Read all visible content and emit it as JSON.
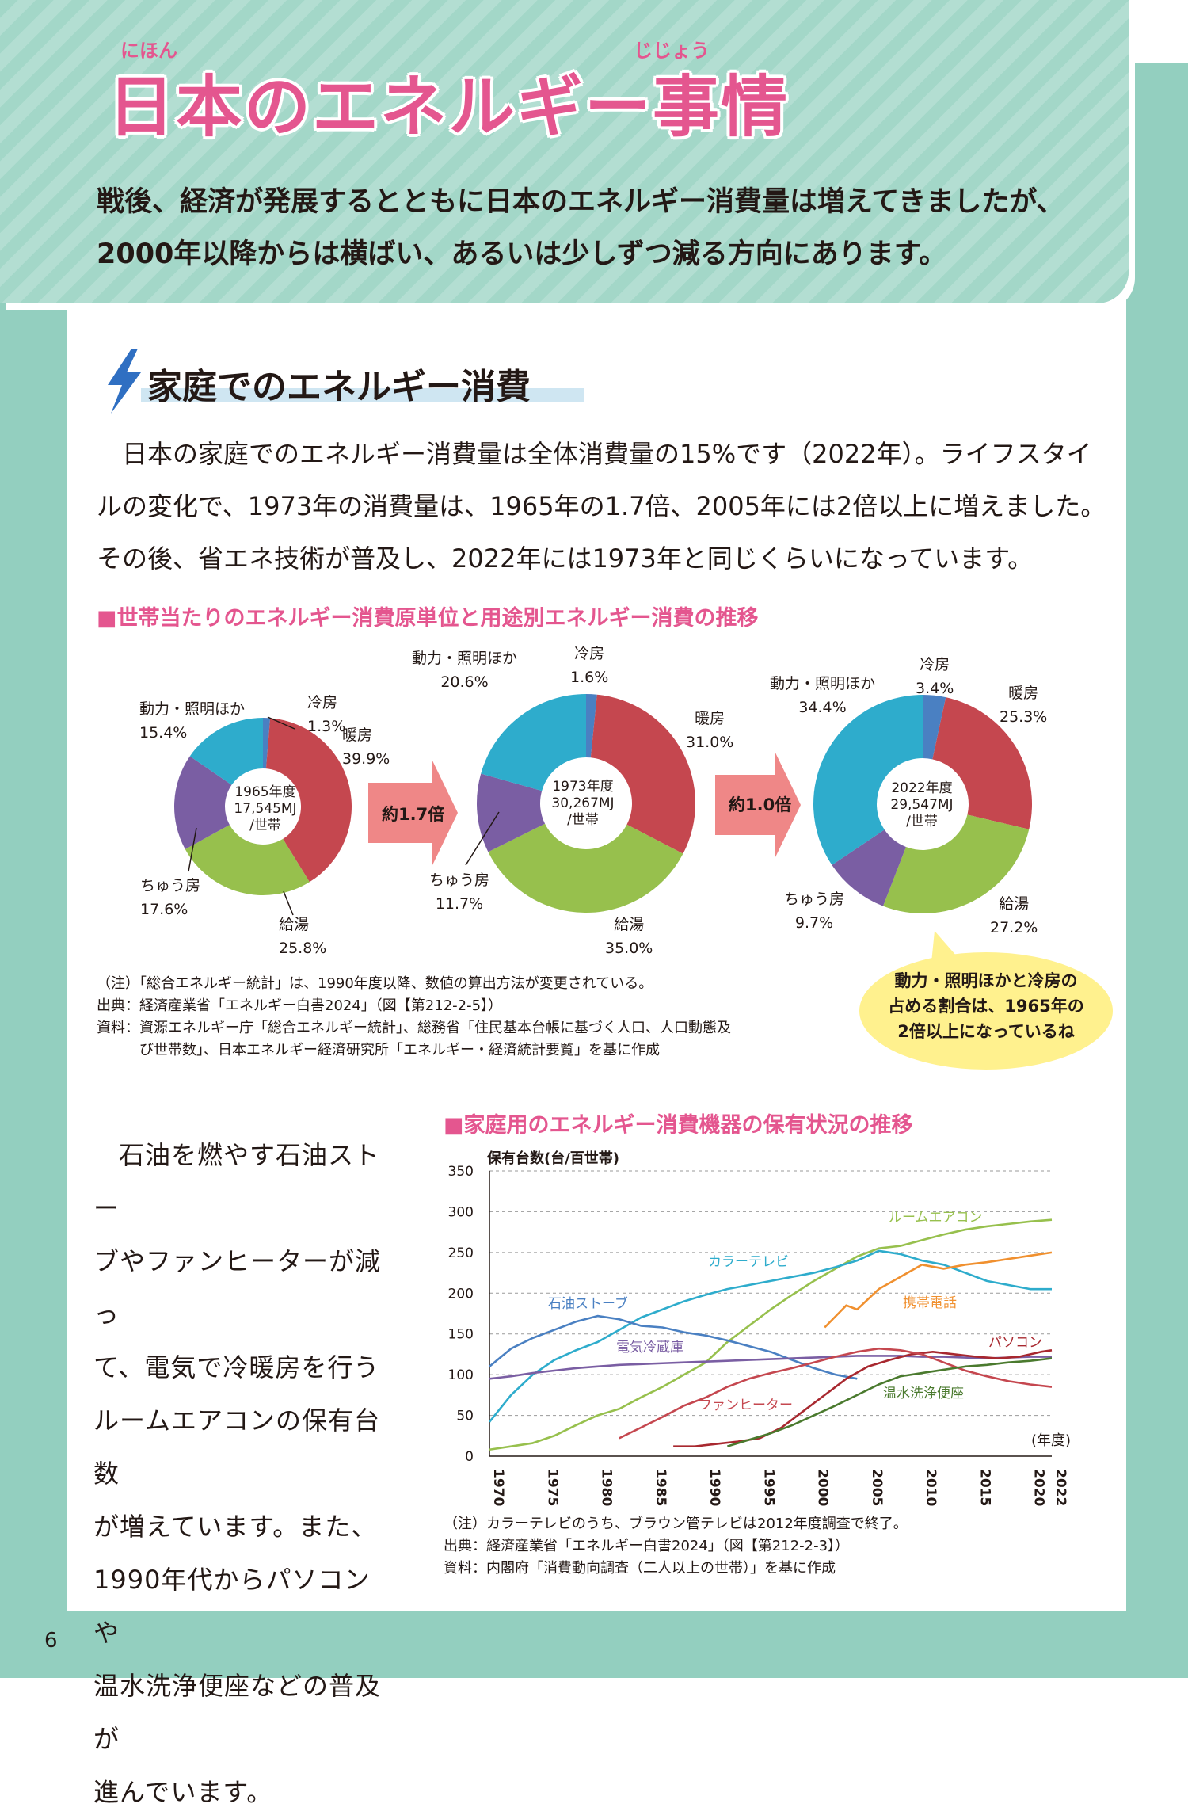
{
  "header": {
    "title": "日本のエネルギー事情",
    "title_ruby": [
      "にほん",
      "じじょう"
    ],
    "lead": [
      "戦後、経済が発展するとともに日本のエネルギー消費量は増えてきましたが、",
      "2000年以降からは横ばい、あるいは少しずつ減る方向にあります。"
    ]
  },
  "section": {
    "title": "家庭でのエネルギー消費",
    "body": [
      "日本の家庭でのエネルギー消費量は全体消費量の15%です（2022年）。ライフスタイ",
      "ルの変化で、1973年の消費量は、1965年の1.7倍、2005年には2倍以上に増えました。",
      "その後、省エネ技術が普及し、2022年には1973年と同じくらいになっています。"
    ]
  },
  "colors": {
    "cooling": "#4a80c2",
    "heating": "#c5474f",
    "hot_water": "#97c04d",
    "kitchen": "#7a5ea3",
    "power_lighting": "#2eaccc",
    "accent_pink": "#e4568f",
    "frame": "#93cfbf",
    "arrow": "#ef8787",
    "bubble": "#fff18e"
  },
  "chart1": {
    "heading": "■世帯当たりのエネルギー消費原単位と用途別エネルギー消費の推移",
    "arrow1": "約1.7倍",
    "arrow2": "約1.0倍",
    "notes": [
      "（注）「総合エネルギー統計」は、1990年度以降、数値の算出方法が変更されている。",
      "出典：経済産業省「エネルギー白書2024」（図【第212-2-5】）",
      "資料：資源エネルギー庁「総合エネルギー統計」、総務省「住民基本台帳に基づく人口、人口動態及",
      "　　　び世帯数」、日本エネルギー経済研究所「エネルギー・経済統計要覧」を基に作成"
    ],
    "bubble": [
      "動力・照明ほかと冷房の",
      "占める割合は、1965年の",
      "2倍以上になっているね"
    ],
    "d1": {
      "center": [
        "1965年度",
        "17,545MJ",
        "/世帯"
      ],
      "labels": {
        "power": [
          "動力・照明ほか",
          "15.4%"
        ],
        "cooling": [
          "冷房",
          "1.3%"
        ],
        "heating": [
          "暖房",
          "39.9%"
        ],
        "hotwater": [
          "給湯",
          "25.8%"
        ],
        "kitchen": [
          "ちゅう房",
          "17.6%"
        ]
      }
    },
    "d2": {
      "center": [
        "1973年度",
        "30,267MJ",
        "/世帯"
      ],
      "labels": {
        "power": [
          "動力・照明ほか",
          "20.6%"
        ],
        "cooling": [
          "冷房",
          "1.6%"
        ],
        "heating": [
          "暖房",
          "31.0%"
        ],
        "hotwater": [
          "給湯",
          "35.0%"
        ],
        "kitchen": [
          "ちゅう房",
          "11.7%"
        ]
      }
    },
    "d3": {
      "center": [
        "2022年度",
        "29,547MJ",
        "/世帯"
      ],
      "labels": {
        "power": [
          "動力・照明ほか",
          "34.4%"
        ],
        "cooling": [
          "冷房",
          "3.4%"
        ],
        "heating": [
          "暖房",
          "25.3%"
        ],
        "hotwater": [
          "給湯",
          "27.2%"
        ],
        "kitchen": [
          "ちゅう房",
          "9.7%"
        ]
      }
    }
  },
  "chart2": {
    "heading": "■家庭用のエネルギー消費機器の保有状況の推移",
    "ylabel": "保有台数(台/百世帯)",
    "xunit": "(年度)",
    "notes": [
      "（注）カラーテレビのうち、ブラウン管テレビは2012年度調査で終了。",
      "出典：経済産業省「エネルギー白書2024」（図【第212-2-3】）",
      "資料：内閣府「消費動向調査（二人以上の世帯）」を基に作成"
    ]
  },
  "side_text": [
    "石油を燃やす石油ストー",
    "ブやファンヒーターが減っ",
    "て、電気で冷暖房を行う",
    "ルームエアコンの保有台数",
    "が増えています。また、",
    "1990年代からパソコンや",
    "温水洗浄便座などの普及が",
    "進んでいます。"
  ],
  "page_number": "6",
  "chart_data": [
    {
      "type": "pie",
      "subtype": "donut",
      "title": "1965年度",
      "center_text": "17,545MJ/世帯",
      "categories": [
        "冷房",
        "暖房",
        "給湯",
        "ちゅう房",
        "動力・照明ほか"
      ],
      "values": [
        1.3,
        39.9,
        25.8,
        17.6,
        15.4
      ],
      "unit": "%"
    },
    {
      "type": "pie",
      "subtype": "donut",
      "title": "1973年度",
      "center_text": "30,267MJ/世帯",
      "categories": [
        "冷房",
        "暖房",
        "給湯",
        "ちゅう房",
        "動力・照明ほか"
      ],
      "values": [
        1.6,
        31.0,
        35.0,
        11.7,
        20.6
      ],
      "unit": "%"
    },
    {
      "type": "pie",
      "subtype": "donut",
      "title": "2022年度",
      "center_text": "29,547MJ/世帯",
      "categories": [
        "冷房",
        "暖房",
        "給湯",
        "ちゅう房",
        "動力・照明ほか"
      ],
      "values": [
        3.4,
        25.3,
        27.2,
        9.7,
        34.4
      ],
      "unit": "%"
    },
    {
      "type": "line",
      "title": "■家庭用のエネルギー消費機器の保有状況の推移",
      "xlabel": "(年度)",
      "ylabel": "保有台数(台/百世帯)",
      "xlim": [
        1970,
        2022
      ],
      "ylim": [
        0,
        350
      ],
      "yticks": [
        0,
        50,
        100,
        150,
        200,
        250,
        300,
        350
      ],
      "xticks": [
        1970,
        1975,
        1980,
        1985,
        1990,
        1995,
        2000,
        2005,
        2010,
        2015,
        2020,
        2022
      ],
      "grid": true,
      "series": [
        {
          "name": "ルームエアコン",
          "color": "#97c04d",
          "points": [
            [
              1970,
              8
            ],
            [
              1972,
              12
            ],
            [
              1974,
              16
            ],
            [
              1976,
              25
            ],
            [
              1978,
              38
            ],
            [
              1980,
              50
            ],
            [
              1982,
              58
            ],
            [
              1984,
              72
            ],
            [
              1986,
              85
            ],
            [
              1988,
              100
            ],
            [
              1990,
              115
            ],
            [
              1992,
              140
            ],
            [
              1994,
              160
            ],
            [
              1996,
              180
            ],
            [
              1998,
              198
            ],
            [
              2000,
              215
            ],
            [
              2002,
              230
            ],
            [
              2004,
              245
            ],
            [
              2006,
              255
            ],
            [
              2008,
              258
            ],
            [
              2010,
              265
            ],
            [
              2012,
              272
            ],
            [
              2014,
              278
            ],
            [
              2016,
              282
            ],
            [
              2018,
              285
            ],
            [
              2020,
              288
            ],
            [
              2022,
              290
            ]
          ]
        },
        {
          "name": "カラーテレビ",
          "color": "#2eaccc",
          "points": [
            [
              1970,
              42
            ],
            [
              1972,
              75
            ],
            [
              1974,
              100
            ],
            [
              1976,
              118
            ],
            [
              1978,
              130
            ],
            [
              1980,
              140
            ],
            [
              1982,
              155
            ],
            [
              1984,
              170
            ],
            [
              1986,
              180
            ],
            [
              1988,
              190
            ],
            [
              1990,
              198
            ],
            [
              1992,
              205
            ],
            [
              1994,
              210
            ],
            [
              1996,
              215
            ],
            [
              1998,
              220
            ],
            [
              2000,
              225
            ],
            [
              2002,
              232
            ],
            [
              2004,
              240
            ],
            [
              2006,
              252
            ],
            [
              2008,
              248
            ],
            [
              2010,
              240
            ],
            [
              2012,
              235
            ],
            [
              2014,
              225
            ],
            [
              2016,
              215
            ],
            [
              2018,
              210
            ],
            [
              2020,
              205
            ],
            [
              2022,
              205
            ]
          ]
        },
        {
          "name": "石油ストーブ",
          "color": "#4a80c2",
          "points": [
            [
              1970,
              110
            ],
            [
              1972,
              132
            ],
            [
              1974,
              145
            ],
            [
              1976,
              155
            ],
            [
              1978,
              165
            ],
            [
              1980,
              172
            ],
            [
              1982,
              168
            ],
            [
              1984,
              160
            ],
            [
              1986,
              158
            ],
            [
              1988,
              152
            ],
            [
              1990,
              148
            ],
            [
              1992,
              142
            ],
            [
              1994,
              135
            ],
            [
              1996,
              128
            ],
            [
              1998,
              118
            ],
            [
              2000,
              108
            ],
            [
              2002,
              100
            ],
            [
              2004,
              95
            ]
          ]
        },
        {
          "name": "電気冷蔵庫",
          "color": "#7a5ea3",
          "points": [
            [
              1970,
              95
            ],
            [
              1972,
              98
            ],
            [
              1974,
              102
            ],
            [
              1976,
              105
            ],
            [
              1978,
              108
            ],
            [
              1980,
              110
            ],
            [
              1982,
              112
            ],
            [
              1984,
              113
            ],
            [
              1986,
              114
            ],
            [
              1988,
              115
            ],
            [
              1990,
              116
            ],
            [
              1992,
              117
            ],
            [
              1994,
              118
            ],
            [
              1996,
              119
            ],
            [
              1998,
              120
            ],
            [
              2000,
              121
            ],
            [
              2002,
              122
            ],
            [
              2004,
              123
            ],
            [
              2006,
              123
            ],
            [
              2008,
              123
            ],
            [
              2010,
              122
            ],
            [
              2012,
              122
            ],
            [
              2014,
              121
            ],
            [
              2016,
              120
            ],
            [
              2018,
              121
            ],
            [
              2020,
              122
            ],
            [
              2022,
              122
            ]
          ]
        },
        {
          "name": "携帯電話",
          "color": "#f0902f",
          "points": [
            [
              2001,
              158
            ],
            [
              2003,
              185
            ],
            [
              2004,
              180
            ],
            [
              2006,
              205
            ],
            [
              2008,
              220
            ],
            [
              2010,
              235
            ],
            [
              2012,
              230
            ],
            [
              2014,
              235
            ],
            [
              2016,
              238
            ],
            [
              2018,
              242
            ],
            [
              2020,
              246
            ],
            [
              2022,
              250
            ]
          ]
        },
        {
          "name": "パソコン",
          "color": "#a8282f",
          "points": [
            [
              1987,
              12
            ],
            [
              1989,
              12
            ],
            [
              1991,
              15
            ],
            [
              1993,
              18
            ],
            [
              1995,
              22
            ],
            [
              1997,
              35
            ],
            [
              1999,
              55
            ],
            [
              2001,
              75
            ],
            [
              2003,
              95
            ],
            [
              2005,
              110
            ],
            [
              2007,
              118
            ],
            [
              2009,
              125
            ],
            [
              2011,
              128
            ],
            [
              2013,
              125
            ],
            [
              2015,
              122
            ],
            [
              2017,
              120
            ],
            [
              2019,
              122
            ],
            [
              2021,
              128
            ],
            [
              2022,
              130
            ]
          ]
        },
        {
          "name": "ファンヒーター",
          "color": "#c5474f",
          "points": [
            [
              1982,
              22
            ],
            [
              1984,
              35
            ],
            [
              1986,
              48
            ],
            [
              1988,
              62
            ],
            [
              1990,
              72
            ],
            [
              1992,
              85
            ],
            [
              1994,
              95
            ],
            [
              1996,
              102
            ],
            [
              1998,
              108
            ],
            [
              2000,
              115
            ],
            [
              2002,
              122
            ],
            [
              2004,
              128
            ],
            [
              2006,
              132
            ],
            [
              2008,
              130
            ],
            [
              2010,
              125
            ],
            [
              2012,
              115
            ],
            [
              2014,
              105
            ],
            [
              2016,
              98
            ],
            [
              2018,
              92
            ],
            [
              2020,
              88
            ],
            [
              2022,
              85
            ]
          ]
        },
        {
          "name": "温水洗浄便座",
          "color": "#4a7a2e",
          "points": [
            [
              1992,
              12
            ],
            [
              1994,
              20
            ],
            [
              1996,
              28
            ],
            [
              1998,
              38
            ],
            [
              2000,
              50
            ],
            [
              2002,
              62
            ],
            [
              2004,
              75
            ],
            [
              2006,
              88
            ],
            [
              2008,
              98
            ],
            [
              2010,
              102
            ],
            [
              2012,
              106
            ],
            [
              2014,
              110
            ],
            [
              2016,
              112
            ],
            [
              2018,
              115
            ],
            [
              2020,
              117
            ],
            [
              2022,
              120
            ]
          ]
        }
      ]
    }
  ]
}
